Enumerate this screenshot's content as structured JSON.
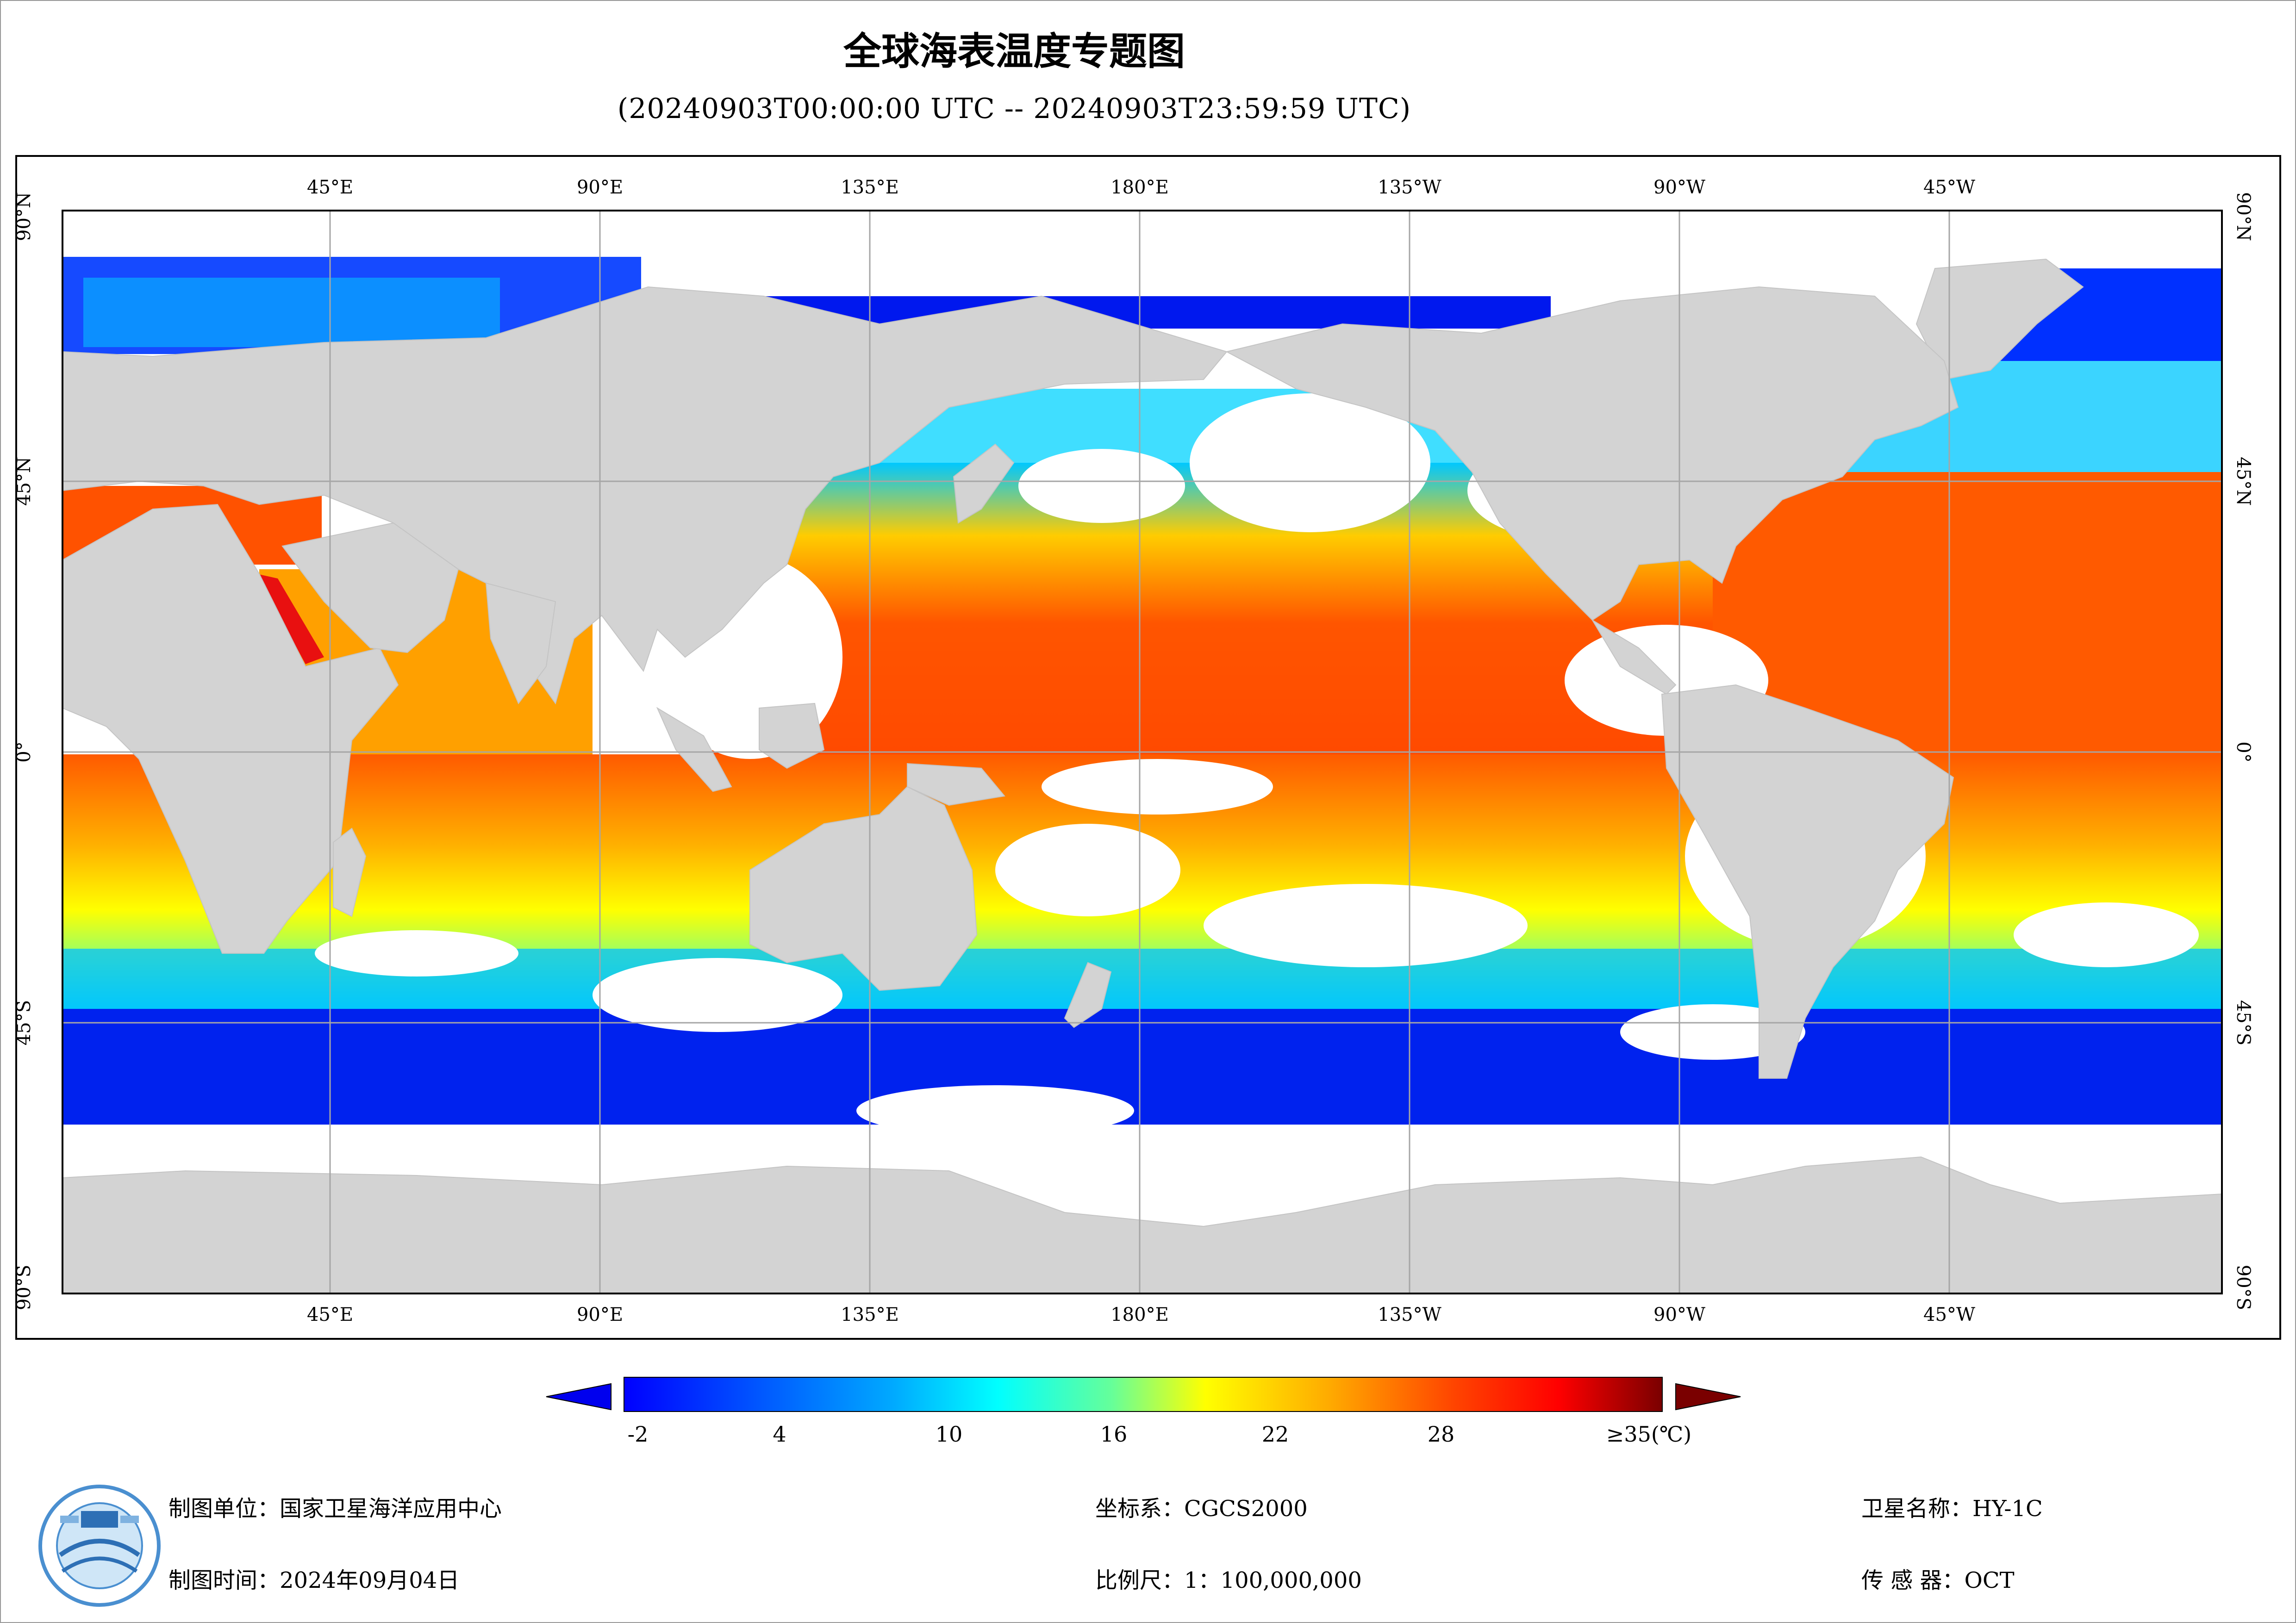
{
  "title": "全球海表温度专题图",
  "subtitle": "(20240903T00:00:00 UTC -- 20240903T23:59:59 UTC)",
  "longitude_labels": [
    "45°E",
    "90°E",
    "135°E",
    "180°E",
    "135°W",
    "90°W",
    "45°W"
  ],
  "latitude_labels": [
    "90°N",
    "45°N",
    "0°",
    "45°S",
    "90°S"
  ],
  "colorbar": {
    "labels": [
      "-2",
      "4",
      "10",
      "16",
      "22",
      "28",
      "≥35(℃)"
    ],
    "min": -2,
    "max": 35,
    "unit": "℃"
  },
  "footer": {
    "org_label": "制图单位：国家卫星海洋应用中心",
    "date_label": "制图时间：2024年09月04日",
    "crs_label": "坐标系：CGCS2000",
    "scale_label": "比例尺：1：100,000,000",
    "satellite_label": "卫星名称：HY-1C",
    "sensor_label": "传 感 器：OCT"
  },
  "colors": {
    "land": "#d3d3d3",
    "ocean_nodata": "#ffffff",
    "grid": "#a6a6a6",
    "colorbar_stops": [
      "#0000ff",
      "#0050ff",
      "#00aaff",
      "#00ffff",
      "#66ff99",
      "#ffff00",
      "#ffaa00",
      "#ff4400",
      "#ff0000",
      "#7a0000"
    ]
  }
}
